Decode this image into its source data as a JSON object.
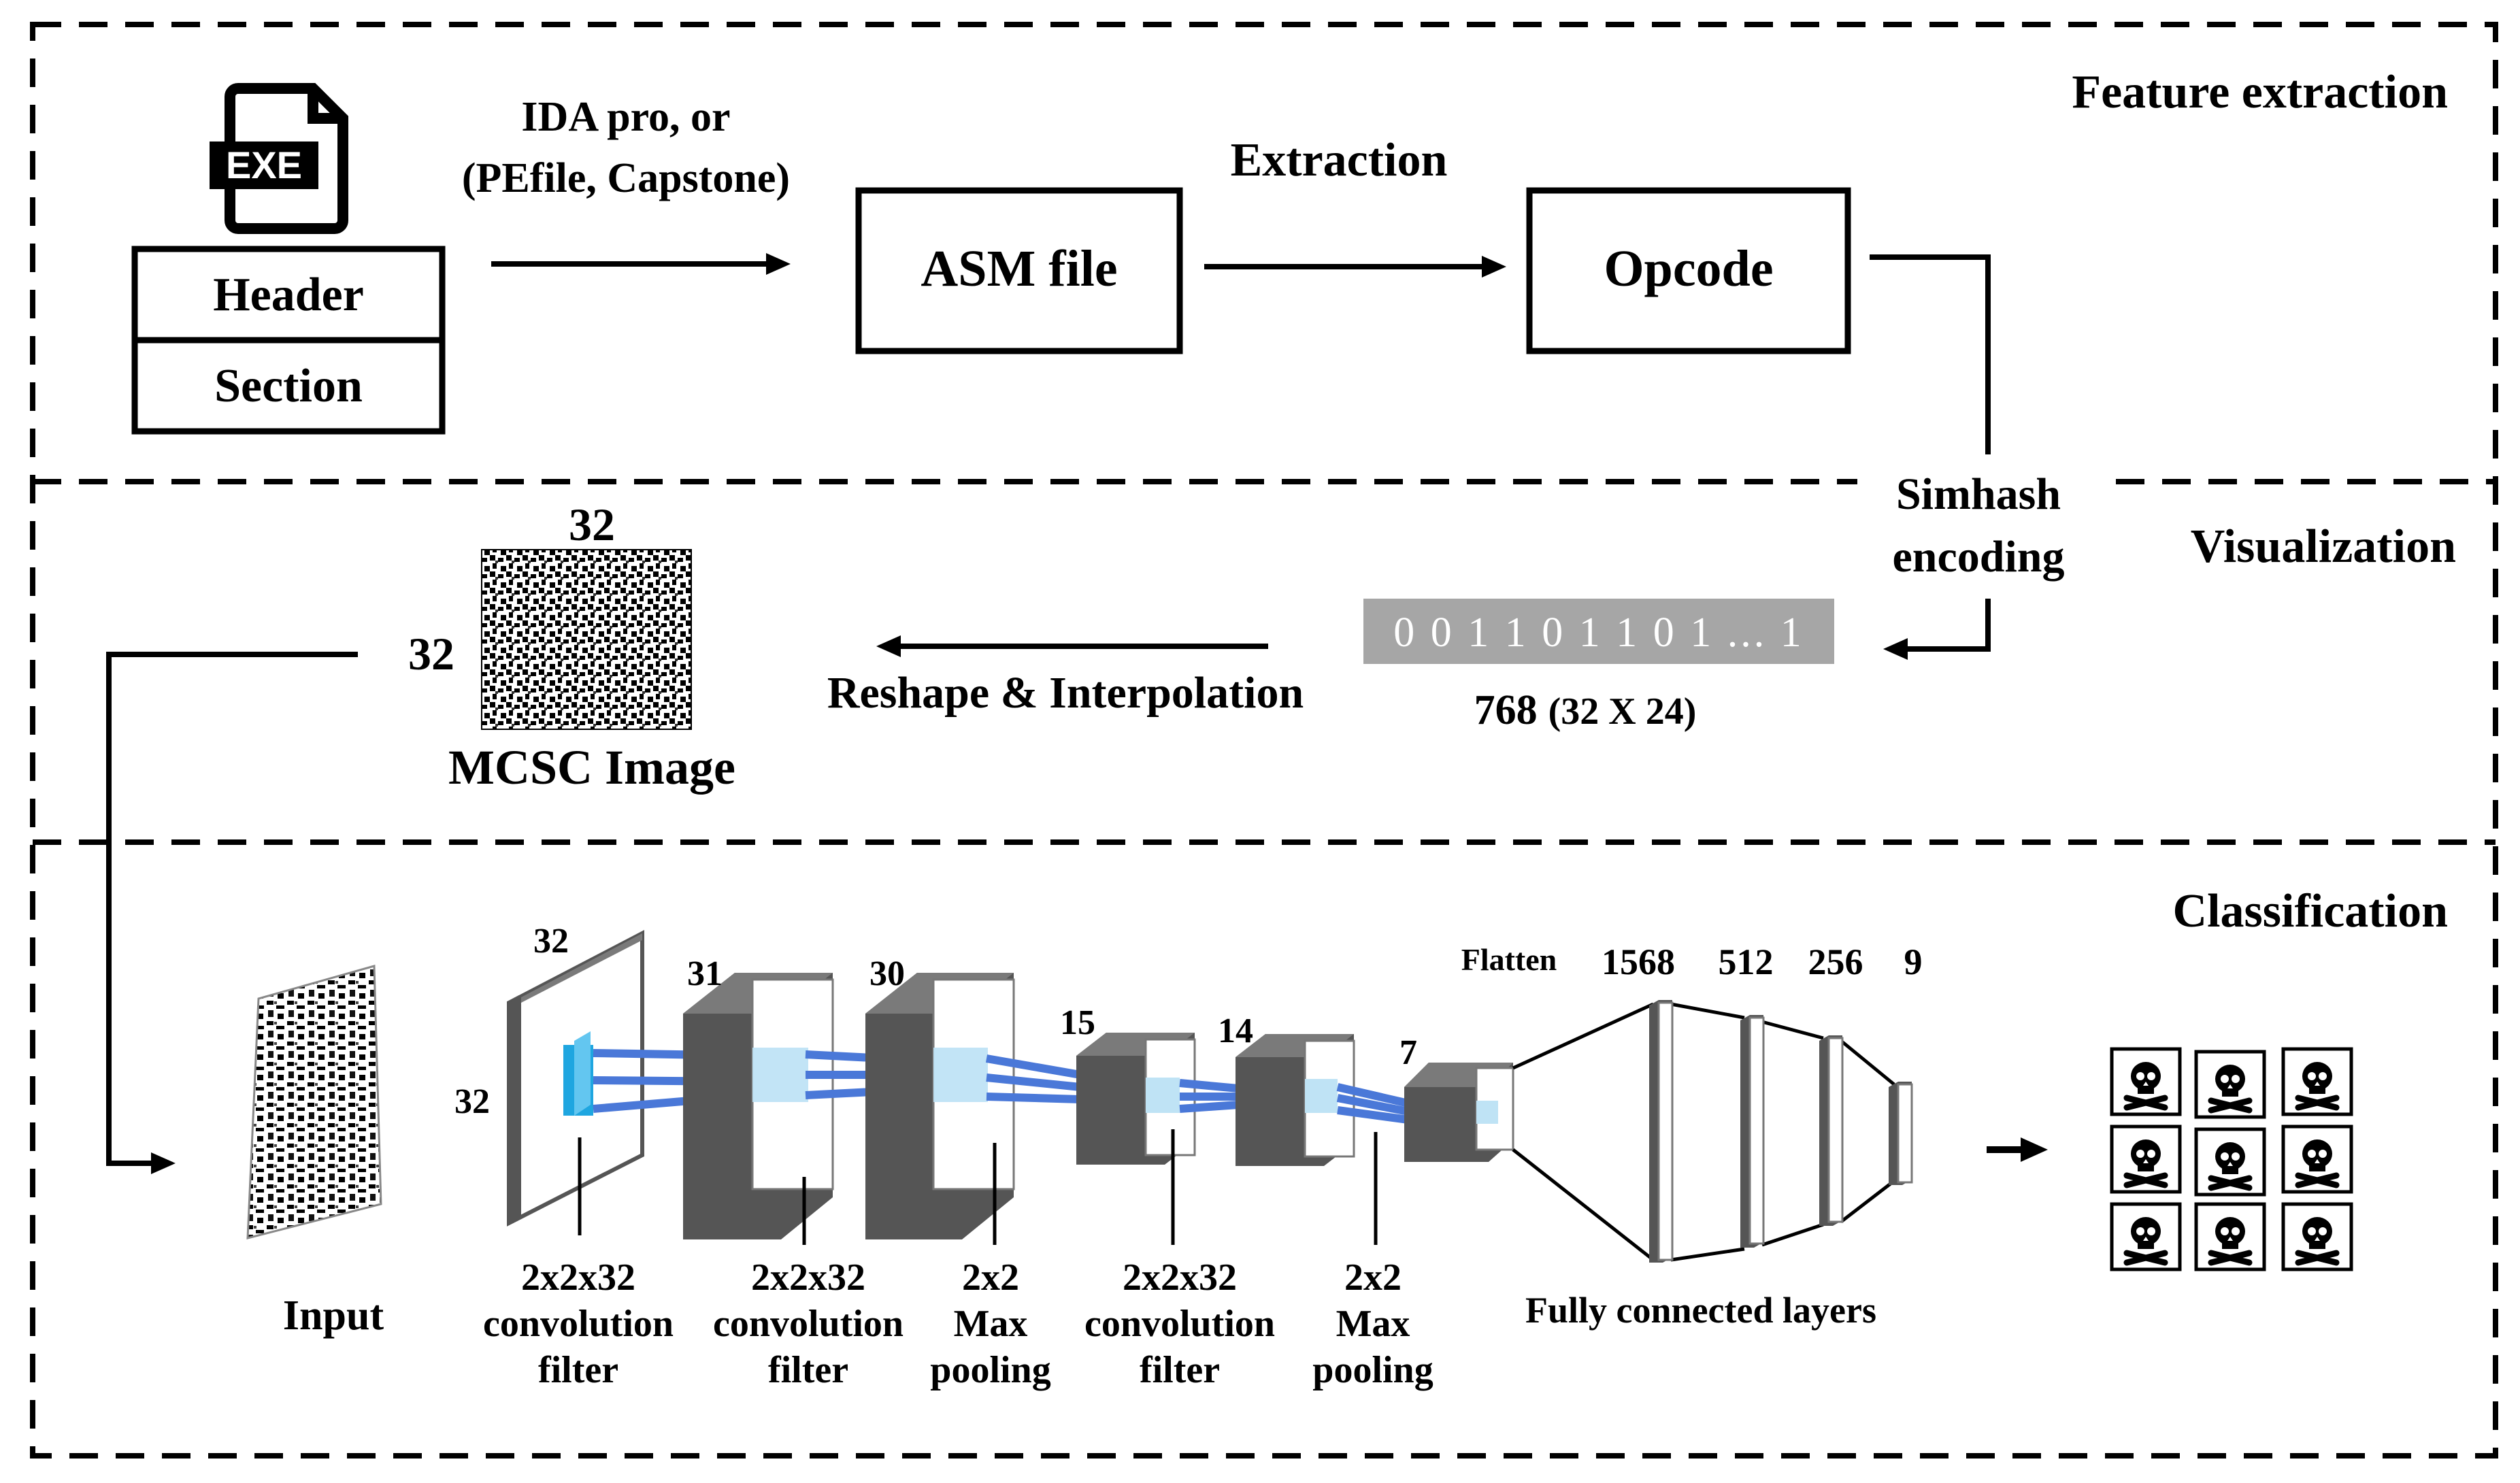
{
  "sections": {
    "feature_extraction": "Feature extraction",
    "visualization": "Visualization",
    "classification": "Classification"
  },
  "feature": {
    "exe_icon_text": "EXE",
    "header": "Header",
    "section": "Section",
    "tool_line1": "IDA pro, or",
    "tool_line2": "(PEfile, Capstone)",
    "asm_file": "ASM file",
    "extraction": "Extraction",
    "opcode": "Opcode"
  },
  "visual": {
    "simhash_line1": "Simhash",
    "simhash_line2": "encoding",
    "bitstring": "0 0 1 1 0 1 1 0 1 ... 1",
    "vector_size": "768",
    "vector_shape": "(32 X 24)",
    "reshape": "Reshape & Interpolation",
    "image_width": "32",
    "image_height": "32",
    "image_caption": "MCSC Image"
  },
  "cnn": {
    "input_label": "Input",
    "dims": [
      "32",
      "32",
      "31",
      "30",
      "15",
      "14",
      "7"
    ],
    "flatten": "Flatten",
    "fc_sizes": [
      "1568",
      "512",
      "256",
      "9"
    ],
    "captions": [
      [
        "2x2x32",
        "convolution",
        "filter"
      ],
      [
        "2x2x32",
        "convolution",
        "filter"
      ],
      [
        "2x2",
        "Max",
        "pooling"
      ],
      [
        "2x2x32",
        "convolution",
        "filter"
      ],
      [
        "2x2",
        "Max",
        "pooling"
      ]
    ],
    "fc_caption": "Fully connected layers",
    "output_classes": 9
  },
  "colors": {
    "line": "#000000",
    "block_dark": "#555555",
    "block_top": "#7a7a7a",
    "block_front": "#ffffff",
    "filter_blue": "#1fa6e0",
    "connector_blue": "#4a78d8",
    "bit_bg": "#a6a6a6",
    "bit_text": "#ffffff"
  }
}
